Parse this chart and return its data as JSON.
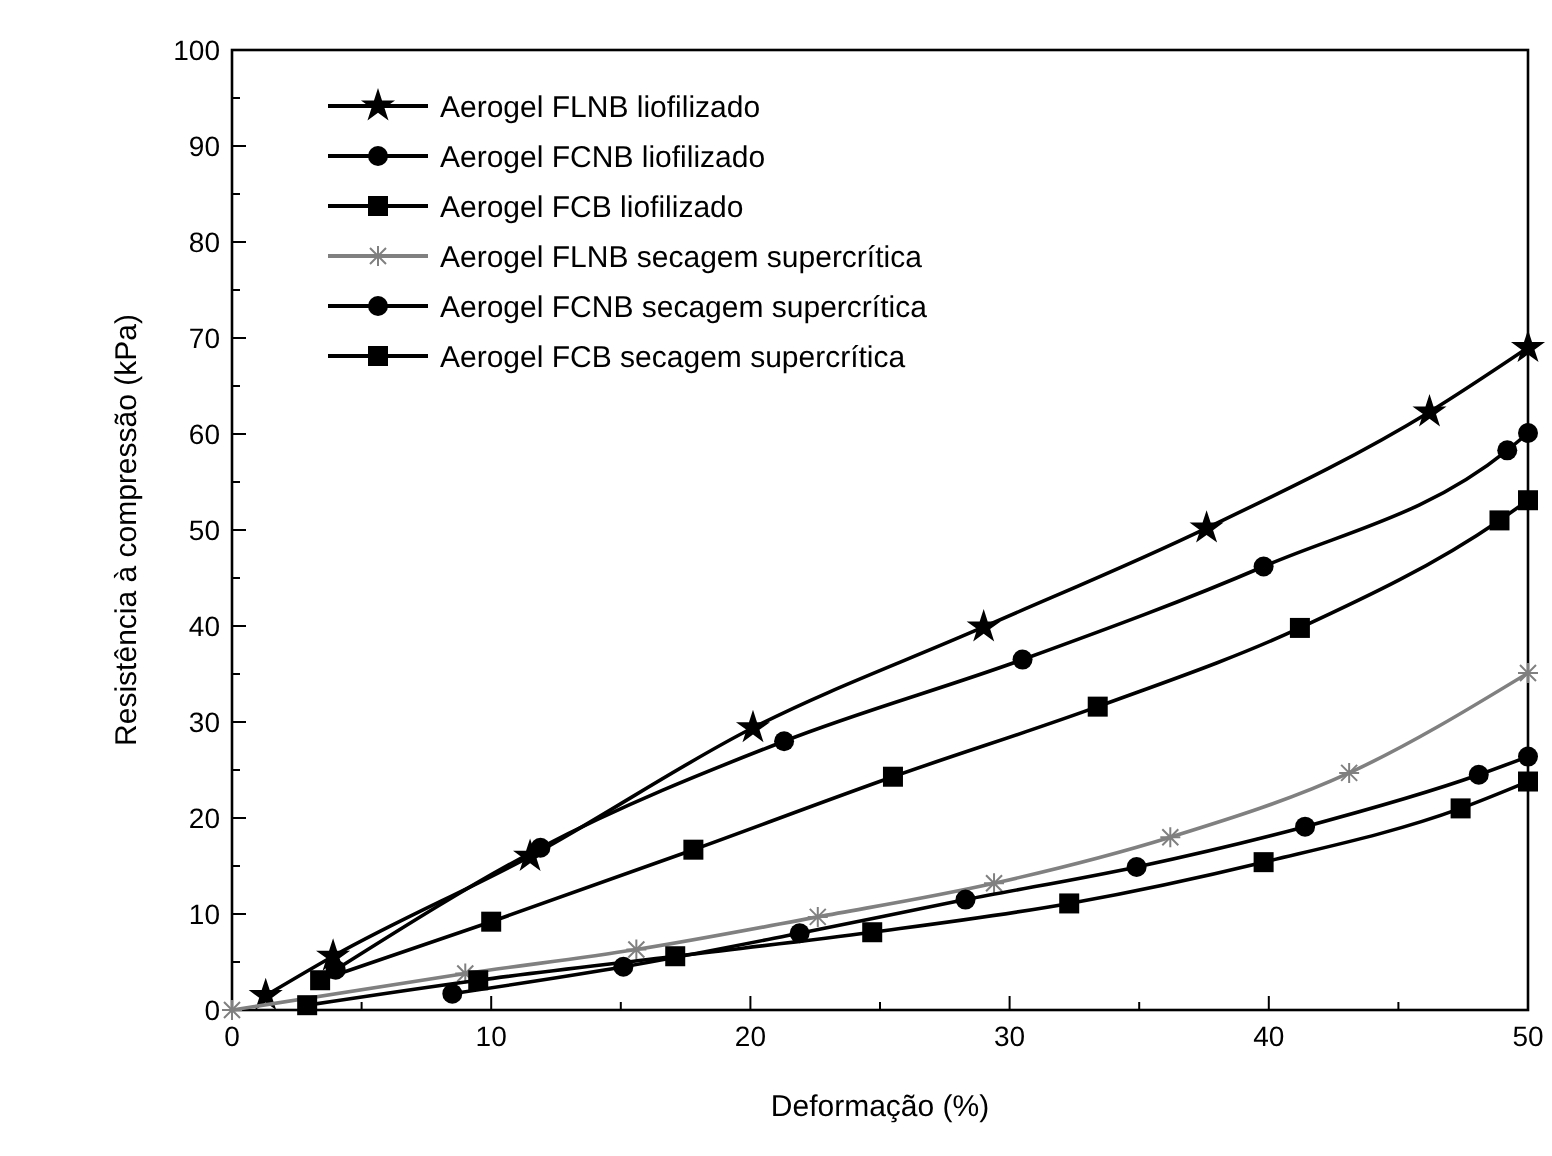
{
  "chart_data": {
    "type": "line",
    "xlabel": "Deformação  (%)",
    "ylabel": "Resistência à compressão  (kPa)",
    "xlim": [
      0,
      50
    ],
    "ylim": [
      0,
      100
    ],
    "xticks": [
      0,
      {
        "value": 5,
        "label": null
      },
      10,
      {
        "value": 15,
        "label": null
      },
      20,
      {
        "value": 25,
        "label": null
      },
      30,
      {
        "value": 35,
        "label": null
      },
      40,
      {
        "value": 45,
        "label": null
      },
      50
    ],
    "yticks": [
      0,
      {
        "value": 5,
        "label": null
      },
      10,
      {
        "value": 15,
        "label": null
      },
      20,
      {
        "value": 25,
        "label": null
      },
      30,
      {
        "value": 35,
        "label": null
      },
      40,
      {
        "value": 45,
        "label": null
      },
      50,
      {
        "value": 55,
        "label": null
      },
      60,
      {
        "value": 65,
        "label": null
      },
      70,
      {
        "value": 75,
        "label": null
      },
      80,
      {
        "value": 85,
        "label": null
      },
      90,
      {
        "value": 95,
        "label": null
      },
      100
    ],
    "legend": "top left",
    "grid": false,
    "line_style": "solid",
    "series": [
      {
        "name": "Aerogel FLNB liofilizado",
        "color": "#000000",
        "marker": "star",
        "x": [
          1.3,
          3.9,
          11.5,
          20.1,
          29.0,
          37.6,
          46.2,
          50
        ],
        "values": [
          1.5,
          5.6,
          16.0,
          29.4,
          39.9,
          50.2,
          62.3,
          69.0
        ]
      },
      {
        "name": "Aerogel FCNB liofilizado",
        "color": "#000000",
        "marker": "circle",
        "x": [
          4.0,
          11.9,
          21.3,
          30.5,
          39.8,
          49.2,
          50
        ],
        "values": [
          4.2,
          16.9,
          28.0,
          36.5,
          46.2,
          58.3,
          60.1
        ]
      },
      {
        "name": "Aerogel FCB liofilizado",
        "color": "#000000",
        "marker": "square",
        "x": [
          3.4,
          10.0,
          17.8,
          25.5,
          33.4,
          41.2,
          48.9,
          50
        ],
        "values": [
          3.1,
          9.2,
          16.7,
          24.3,
          31.6,
          39.8,
          51.0,
          53.1
        ]
      },
      {
        "name": "Aerogel FLNB secagem supercrítica",
        "color": "#808080",
        "marker": "cross",
        "x": [
          0,
          9.0,
          15.6,
          22.6,
          29.4,
          36.2,
          43.1,
          50
        ],
        "values": [
          0,
          3.8,
          6.3,
          9.7,
          13.2,
          18.0,
          24.7,
          35.1
        ]
      },
      {
        "name": "Aerogel FCNB secagem supercrítica",
        "color": "#000000",
        "marker": "circle",
        "x": [
          8.5,
          15.1,
          21.9,
          28.3,
          34.9,
          41.4,
          48.1,
          50
        ],
        "values": [
          1.7,
          4.5,
          8.0,
          11.5,
          14.9,
          19.1,
          24.5,
          26.4
        ]
      },
      {
        "name": "Aerogel FCB secagem supercrítica",
        "color": "#000000",
        "marker": "square",
        "x": [
          2.9,
          9.5,
          17.1,
          24.7,
          32.3,
          39.8,
          47.4,
          50
        ],
        "values": [
          0.5,
          3.1,
          5.6,
          8.1,
          11.1,
          15.4,
          21.0,
          23.8
        ]
      }
    ]
  }
}
